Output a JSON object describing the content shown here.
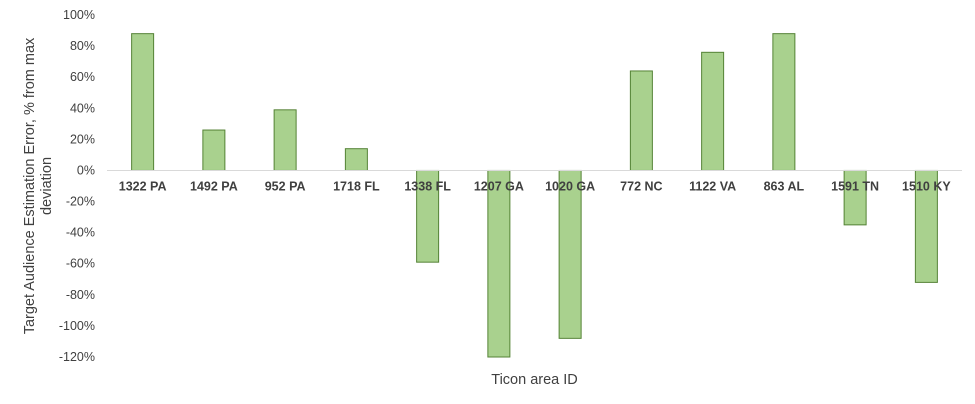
{
  "chart_data": {
    "type": "bar",
    "title": "",
    "xlabel": "Ticon area ID",
    "ylabel_lines": [
      "Target Audience Estimation Error, % from max",
      "deviation"
    ],
    "ylim": [
      -120,
      100
    ],
    "yticks": [
      100,
      80,
      60,
      40,
      20,
      0,
      -20,
      -40,
      -60,
      -80,
      -100,
      -120
    ],
    "ytick_labels": [
      "100%",
      "80%",
      "60%",
      "40%",
      "20%",
      "0%",
      "-20%",
      "-40%",
      "-60%",
      "-80%",
      "-100%",
      "-120%"
    ],
    "categories": [
      "1322 PA",
      "1492 PA",
      "952 PA",
      "1718 FL",
      "1338 FL",
      "1207 GA",
      "1020 GA",
      "772 NC",
      "1122 VA",
      "863 AL",
      "1591 TN",
      "1510 KY"
    ],
    "values": [
      88,
      26,
      39,
      14,
      -59,
      -120,
      -108,
      64,
      76,
      88,
      -35,
      -72
    ],
    "grid": false,
    "legend": "none",
    "colors": {
      "bar_fill": "#a9d18e",
      "bar_stroke": "#548235",
      "axis": "#d9d9d9",
      "text": "#404040"
    }
  }
}
